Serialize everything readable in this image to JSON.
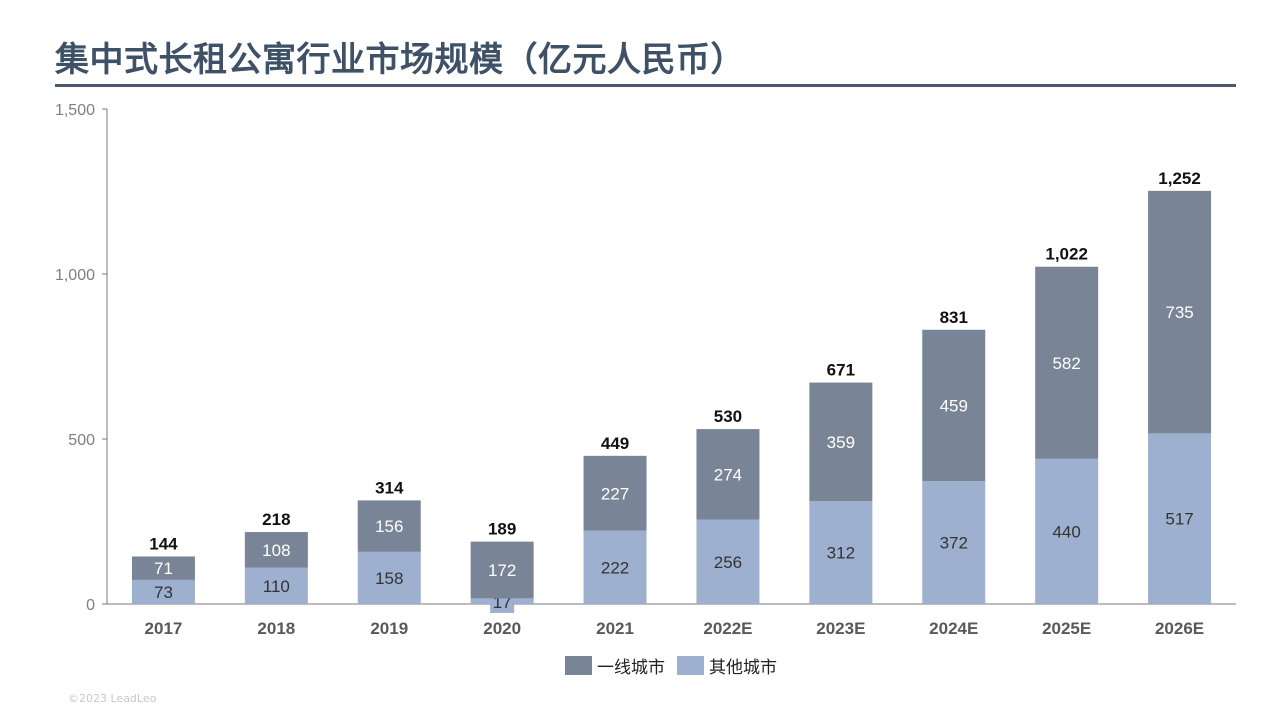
{
  "title": "集中式长租公寓行业市场规模（亿元人民币）",
  "footer": "©2023 LeadLeo",
  "colors": {
    "tier1": "#798596",
    "others": "#9eb0cf",
    "title": "#3e5166"
  },
  "chart_data": {
    "type": "bar",
    "stacked": true,
    "title": "集中式长租公寓行业市场规模（亿元人民币）",
    "categories": [
      "2017",
      "2018",
      "2019",
      "2020",
      "2021",
      "2022E",
      "2023E",
      "2024E",
      "2025E",
      "2026E"
    ],
    "series": [
      {
        "name": "其他城市",
        "values": [
          73,
          110,
          158,
          17,
          222,
          256,
          312,
          372,
          440,
          517
        ]
      },
      {
        "name": "一线城市",
        "values": [
          71,
          108,
          156,
          172,
          227,
          274,
          359,
          459,
          582,
          735
        ]
      }
    ],
    "totals": [
      144,
      218,
      314,
      189,
      449,
      530,
      671,
      831,
      1022,
      1252
    ],
    "total_labels": [
      "144",
      "218",
      "314",
      "189",
      "449",
      "530",
      "671",
      "831",
      "1,022",
      "1,252"
    ],
    "yticks": [
      "0",
      "500",
      "1,000",
      "1,500"
    ],
    "ytick_values": [
      0,
      500,
      1000,
      1500
    ],
    "ylim": [
      0,
      1500
    ],
    "grid": false,
    "legend_position": "bottom"
  },
  "legend": {
    "items": [
      "一线城市",
      "其他城市"
    ]
  }
}
